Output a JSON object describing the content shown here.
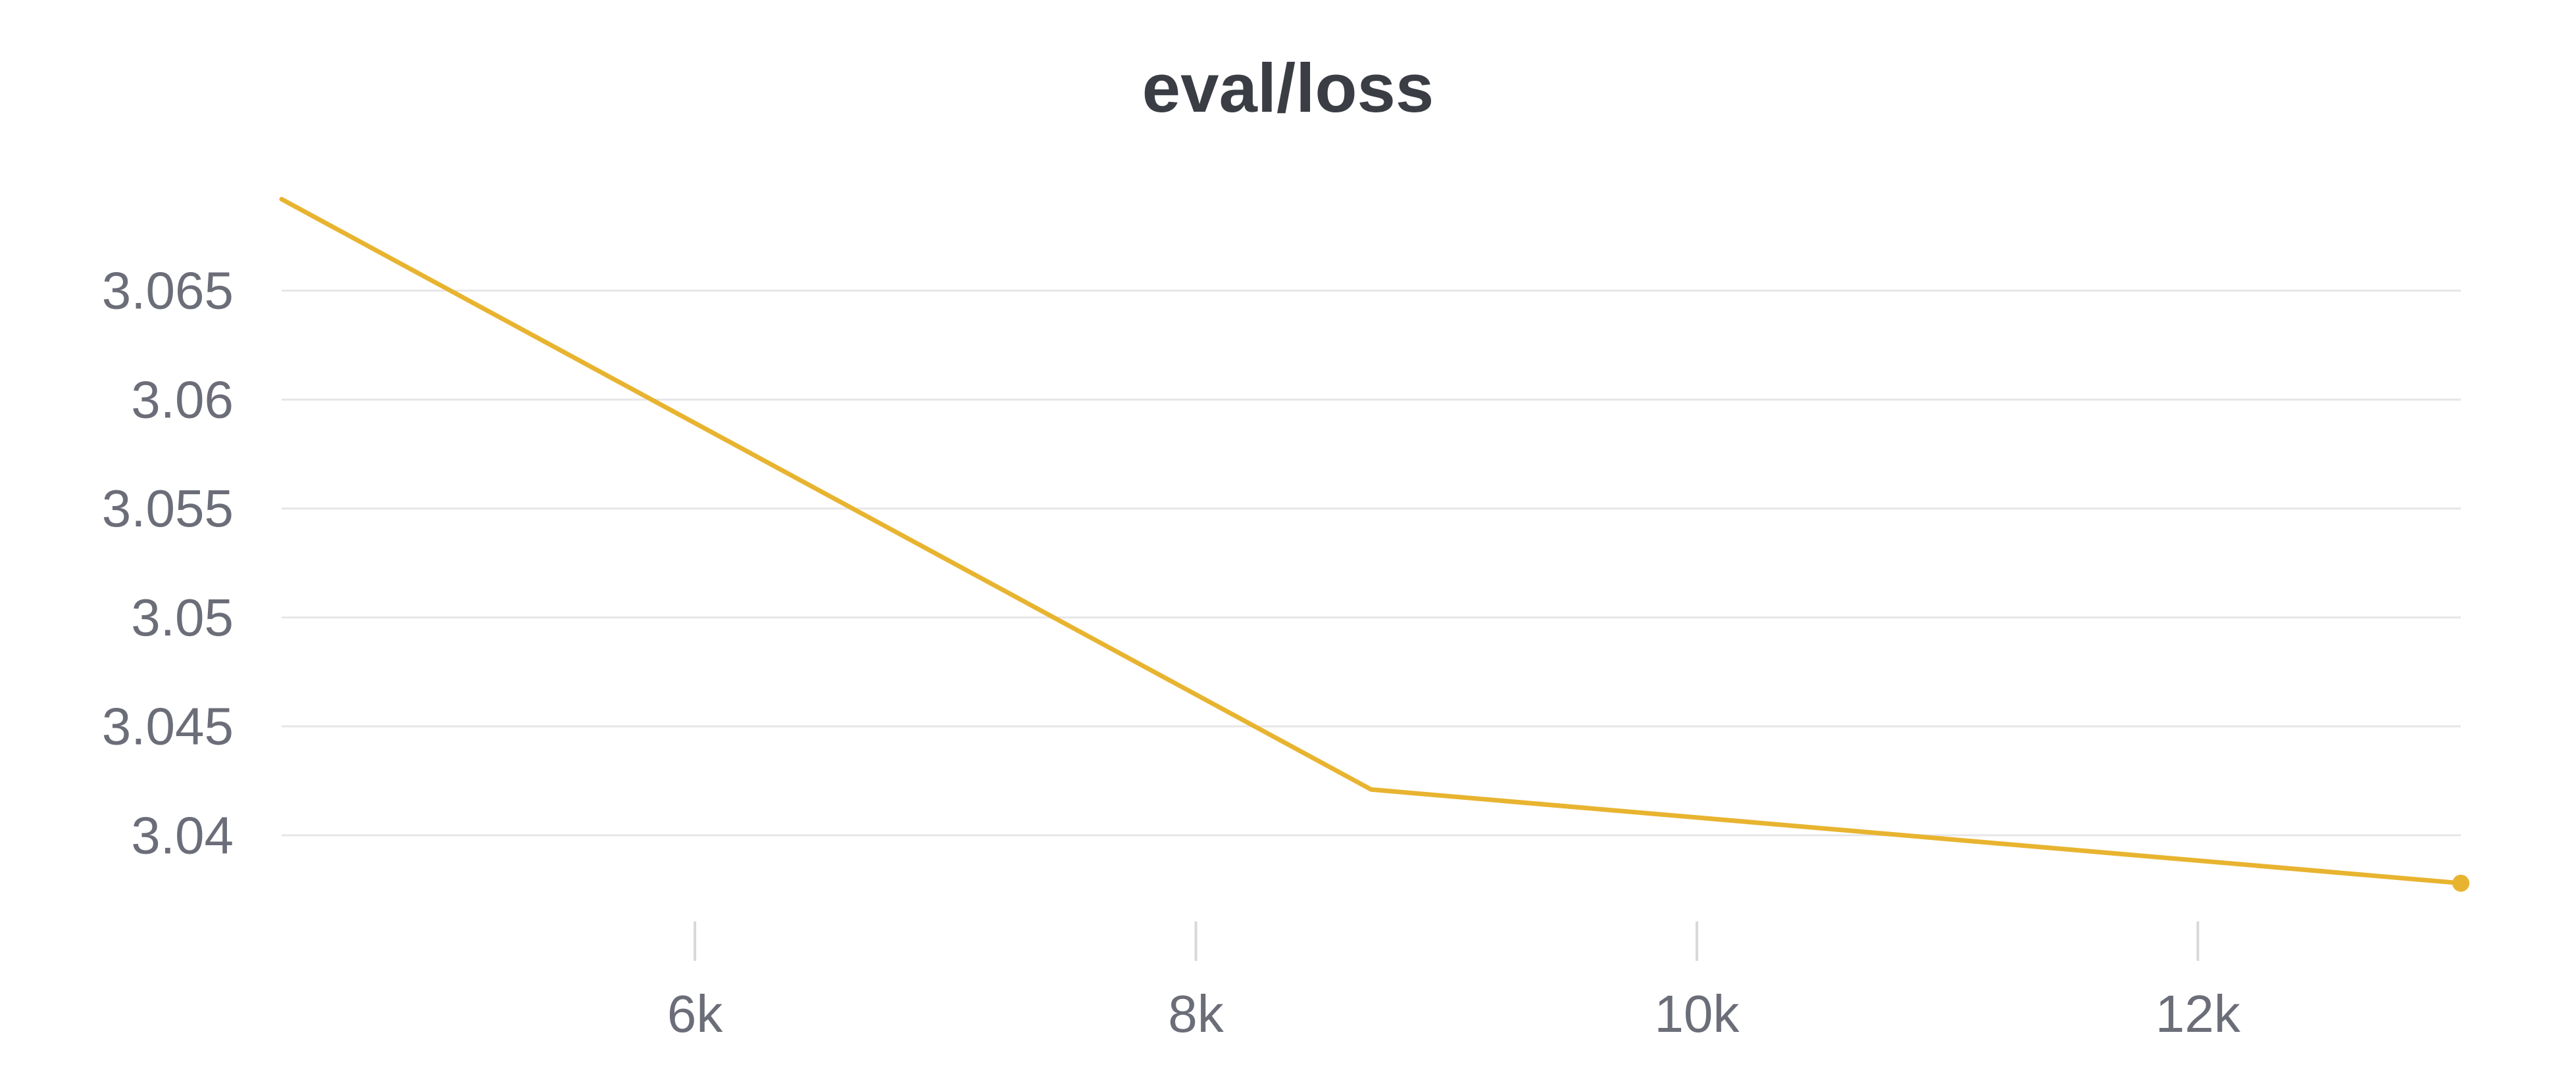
{
  "chart_data": {
    "type": "line",
    "title": "eval/loss",
    "xlabel": "",
    "ylabel": "",
    "xlim": [
      4350,
      13050
    ],
    "ylim": [
      3.0352,
      3.0708
    ],
    "x_ticks": [
      6000,
      8000,
      10000,
      12000
    ],
    "x_tick_labels": [
      "6k",
      "8k",
      "10k",
      "12k"
    ],
    "y_ticks": [
      3.04,
      3.045,
      3.05,
      3.055,
      3.06,
      3.065
    ],
    "y_tick_labels": [
      "3.04",
      "3.045",
      "3.05",
      "3.055",
      "3.06",
      "3.065"
    ],
    "grid": "horizontal",
    "legend": "none",
    "series": [
      {
        "color": "#e8b430",
        "x": [
          4350,
          8700,
          13050
        ],
        "y": [
          3.0692,
          3.0421,
          3.0378
        ],
        "end_marker": true
      }
    ]
  }
}
